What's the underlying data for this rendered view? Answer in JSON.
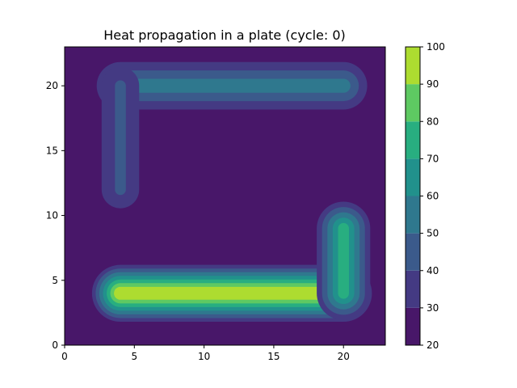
{
  "chart_data": {
    "type": "heatmap",
    "subtype": "filled-contour",
    "title": "Heat propagation in a plate (cycle: 0)",
    "xlabel": "",
    "ylabel": "",
    "xlim": [
      0,
      23
    ],
    "ylim": [
      0,
      23
    ],
    "x_ticks": [
      0,
      5,
      10,
      15,
      20
    ],
    "y_ticks": [
      0,
      5,
      10,
      15,
      20
    ],
    "colorbar": {
      "levels": [
        20,
        30,
        40,
        50,
        60,
        70,
        80,
        90,
        100
      ],
      "colors": [
        "#481769",
        "#443a83",
        "#3b5a8b",
        "#2f788e",
        "#21918c",
        "#28ae80",
        "#5ec962",
        "#addc30",
        "#d2e21b"
      ]
    },
    "background_value": 20,
    "heat_segments": [
      {
        "from": [
          4,
          20
        ],
        "to": [
          20,
          20
        ],
        "peak_value": 55
      },
      {
        "from": [
          4,
          12
        ],
        "to": [
          4,
          20
        ],
        "peak_value": 42
      },
      {
        "from": [
          4,
          4
        ],
        "to": [
          20,
          4
        ],
        "peak_value": 100
      },
      {
        "from": [
          20,
          4
        ],
        "to": [
          20,
          9
        ],
        "peak_value": 75
      }
    ]
  }
}
